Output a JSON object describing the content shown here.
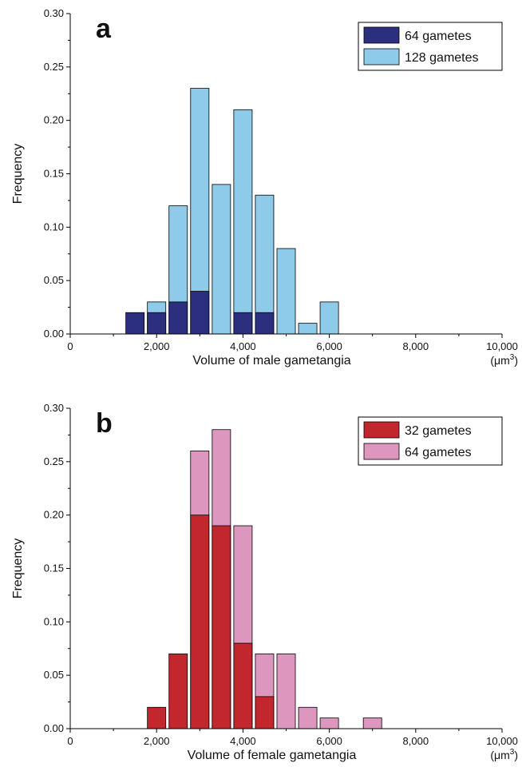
{
  "chart_data": [
    {
      "type": "bar",
      "panel_label": "a",
      "xlabel": "Volume of male gametangia",
      "x_unit_base": "(μm",
      "x_unit_sup": "3",
      "x_unit_close": ")",
      "ylabel": "Frequency",
      "xlim": [
        0,
        10000
      ],
      "ylim": [
        0,
        0.3
      ],
      "x_ticks": [
        0,
        2000,
        4000,
        6000,
        8000,
        10000
      ],
      "x_tick_labels": [
        "0",
        "2,000",
        "4,000",
        "6,000",
        "8,000",
        "10,000"
      ],
      "y_ticks": [
        0,
        0.05,
        0.1,
        0.15,
        0.2,
        0.25,
        0.3
      ],
      "y_tick_labels": [
        "0.00",
        "0.05",
        "0.10",
        "0.15",
        "0.20",
        "0.25",
        "0.30"
      ],
      "bin_width": 500,
      "bin_centers": [
        1500,
        2000,
        2500,
        3000,
        3500,
        4000,
        4500,
        5000,
        5500,
        6000
      ],
      "series": [
        {
          "name": "64 gametes",
          "color": "#2b2f7e",
          "values": [
            0.02,
            0.02,
            0.03,
            0.04,
            0,
            0.02,
            0.02,
            0,
            0,
            0
          ]
        },
        {
          "name": "128 gametes",
          "color": "#8ecae9",
          "values": [
            0,
            0.03,
            0.12,
            0.23,
            0.14,
            0.21,
            0.13,
            0.08,
            0.01,
            0.03
          ]
        }
      ],
      "legend_position": "top-right",
      "grid": false
    },
    {
      "type": "bar",
      "panel_label": "b",
      "xlabel": "Volume of female gametangia",
      "x_unit_base": "(μm",
      "x_unit_sup": "3",
      "x_unit_close": ")",
      "ylabel": "Frequency",
      "xlim": [
        0,
        10000
      ],
      "ylim": [
        0,
        0.3
      ],
      "x_ticks": [
        0,
        2000,
        4000,
        6000,
        8000,
        10000
      ],
      "x_tick_labels": [
        "0",
        "2,000",
        "4,000",
        "6,000",
        "8,000",
        "10,000"
      ],
      "y_ticks": [
        0,
        0.05,
        0.1,
        0.15,
        0.2,
        0.25,
        0.3
      ],
      "y_tick_labels": [
        "0.00",
        "0.05",
        "0.10",
        "0.15",
        "0.20",
        "0.25",
        "0.30"
      ],
      "bin_width": 500,
      "bin_centers": [
        2000,
        2500,
        3000,
        3500,
        4000,
        4500,
        5000,
        5500,
        6000,
        7000
      ],
      "series": [
        {
          "name": "32 gametes",
          "color": "#c1272d",
          "values": [
            0.02,
            0.07,
            0.2,
            0.19,
            0.08,
            0.03,
            0,
            0,
            0,
            0
          ]
        },
        {
          "name": "64 gametes",
          "color": "#dd96bd",
          "values": [
            0,
            0,
            0.26,
            0.28,
            0.19,
            0.07,
            0.07,
            0.02,
            0.01,
            0.01
          ]
        }
      ],
      "legend_position": "top-right",
      "grid": false
    }
  ]
}
